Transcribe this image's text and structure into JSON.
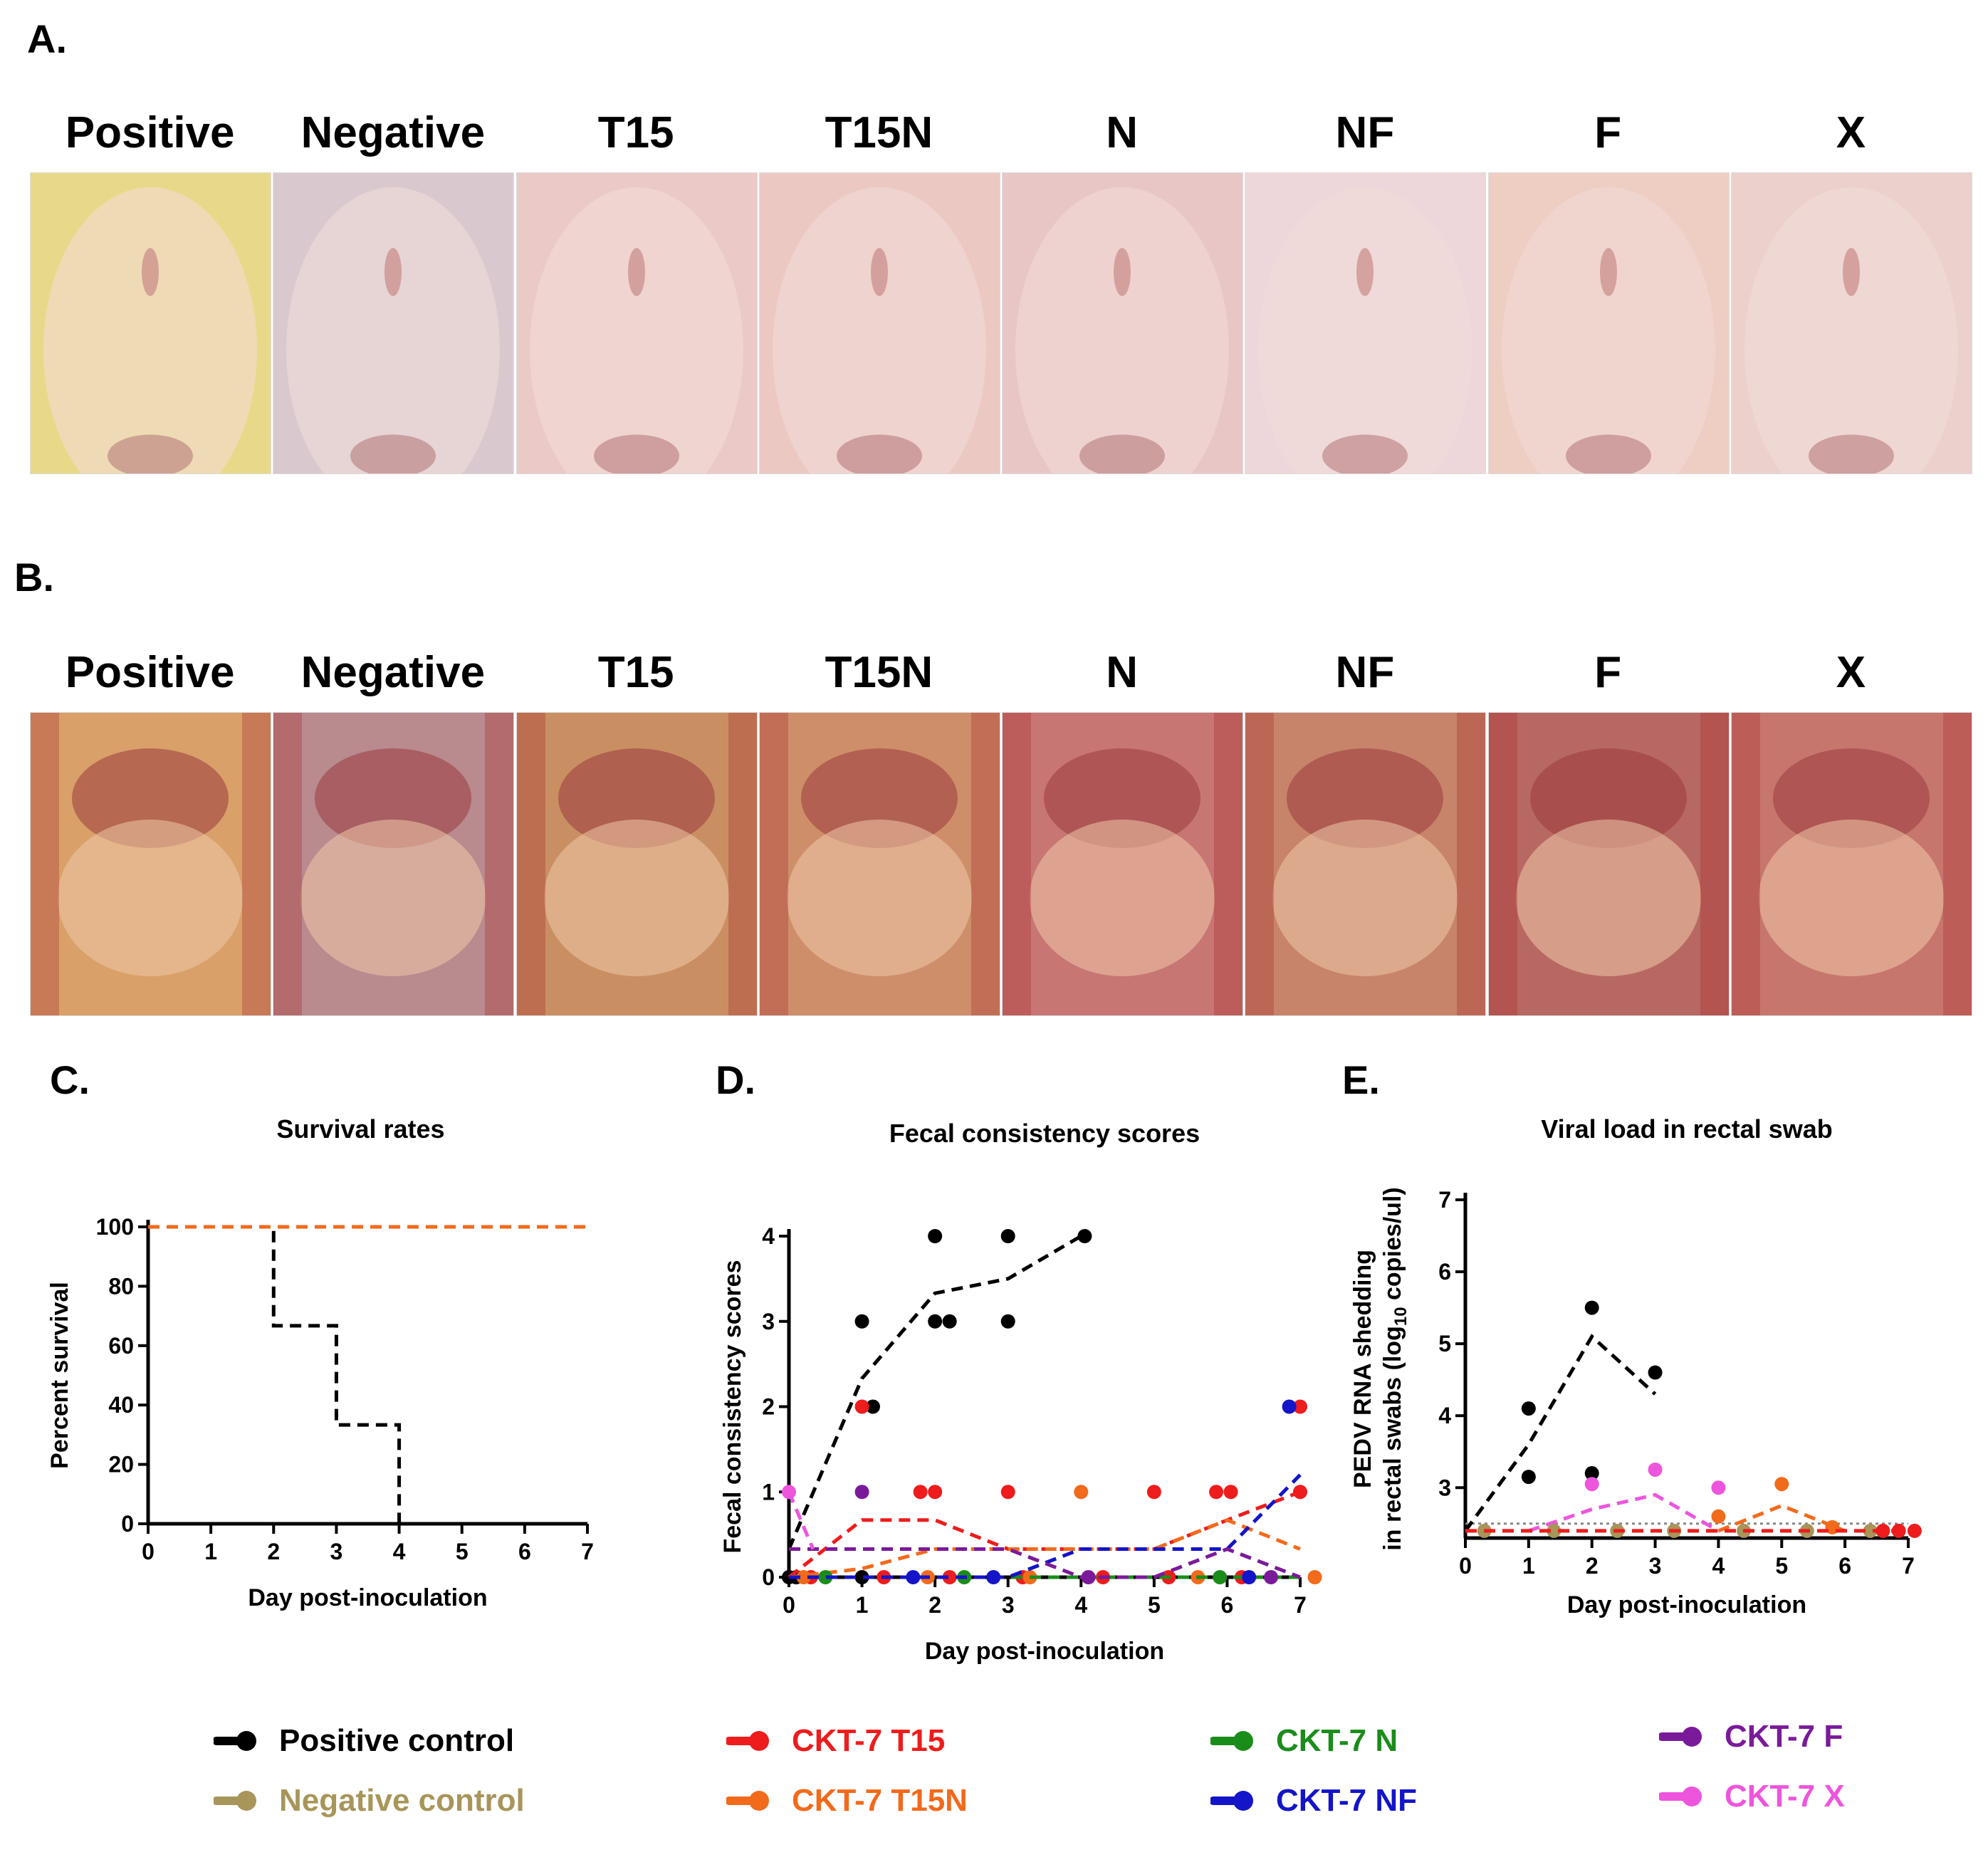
{
  "panels": {
    "a": "A.",
    "b": "B.",
    "c": "C.",
    "d": "D.",
    "e": "E."
  },
  "groups": [
    "Positive",
    "Negative",
    "T15",
    "T15N",
    "N",
    "NF",
    "F",
    "X"
  ],
  "legend": [
    {
      "label": "Positive control",
      "color": "#000000"
    },
    {
      "label": "Negative control",
      "color": "#a8955a"
    },
    {
      "label": "CKT-7 T15",
      "color": "#ee1c1c"
    },
    {
      "label": "CKT-7 T15N",
      "color": "#f26a1b"
    },
    {
      "label": "CKT-7 N",
      "color": "#1a8c1a"
    },
    {
      "label": "CKT-7 NF",
      "color": "#1414c8"
    },
    {
      "label": "CKT-7 F",
      "color": "#7a1a9a"
    },
    {
      "label": "CKT-7 X",
      "color": "#ee55dd"
    }
  ],
  "chart_data": [
    {
      "type": "line",
      "title": "Survival rates",
      "xlabel": "Day post-inoculation",
      "ylabel": "Percent survival",
      "xlim": [
        0,
        7
      ],
      "ylim": [
        0,
        100
      ],
      "xticks": [
        "0",
        "1",
        "2",
        "3",
        "4",
        "5",
        "6",
        "7"
      ],
      "yticks": [
        "0",
        "20",
        "40",
        "60",
        "80",
        "100"
      ],
      "step": true,
      "series": [
        {
          "name": "Positive control",
          "color": "#000000",
          "x": [
            0,
            2,
            2,
            3,
            3,
            4,
            4
          ],
          "y": [
            100,
            100,
            66.7,
            66.7,
            33.3,
            33.3,
            0
          ]
        },
        {
          "name": "Negative control",
          "color": "#a8955a",
          "x": [
            0,
            7
          ],
          "y": [
            100,
            100
          ]
        },
        {
          "name": "CKT-7 T15",
          "color": "#ee1c1c",
          "x": [
            0,
            7
          ],
          "y": [
            100,
            100
          ]
        },
        {
          "name": "CKT-7 T15N",
          "color": "#f26a1b",
          "x": [
            0,
            7
          ],
          "y": [
            100,
            100
          ]
        }
      ]
    },
    {
      "type": "scatter",
      "title": "Fecal consistency scores",
      "xlabel": "Day post-inoculation",
      "ylabel": "Fecal consistency scores",
      "xlim": [
        0,
        7
      ],
      "ylim": [
        0,
        4
      ],
      "xticks": [
        "0",
        "1",
        "2",
        "3",
        "4",
        "5",
        "6",
        "7"
      ],
      "yticks": [
        "0",
        "1",
        "2",
        "3",
        "4"
      ],
      "series": [
        {
          "name": "Positive control",
          "color": "#000000",
          "mean_x": [
            0,
            1,
            2,
            3,
            4
          ],
          "mean_y": [
            0.33,
            2.33,
            3.33,
            3.5,
            4
          ],
          "points": [
            [
              1,
              3
            ],
            [
              1.15,
              2
            ],
            [
              2,
              4
            ],
            [
              2,
              3
            ],
            [
              2.2,
              3
            ],
            [
              3,
              4
            ],
            [
              3,
              3
            ],
            [
              4.05,
              4
            ],
            [
              0,
              0
            ],
            [
              0.1,
              0
            ],
            [
              1,
              0
            ]
          ]
        },
        {
          "name": "CKT-7 T15",
          "color": "#ee1c1c",
          "mean_x": [
            0,
            1,
            2,
            3,
            4,
            5,
            6,
            7
          ],
          "mean_y": [
            0,
            0.67,
            0.67,
            0.33,
            0.33,
            0.33,
            0.67,
            1
          ],
          "points": [
            [
              1,
              2
            ],
            [
              1.8,
              1
            ],
            [
              2,
              1
            ],
            [
              3,
              1
            ],
            [
              5,
              1
            ],
            [
              5.85,
              1
            ],
            [
              6.05,
              1
            ],
            [
              7,
              2
            ],
            [
              7,
              1
            ],
            [
              0.3,
              0
            ],
            [
              1.3,
              0
            ],
            [
              2.2,
              0
            ],
            [
              3.2,
              0
            ],
            [
              4.3,
              0
            ],
            [
              5.2,
              0
            ],
            [
              6.2,
              0
            ]
          ]
        },
        {
          "name": "CKT-7 T15N",
          "color": "#f26a1b",
          "mean_x": [
            0,
            1,
            2,
            3,
            4,
            5,
            6,
            7
          ],
          "mean_y": [
            0,
            0.1,
            0.33,
            0.33,
            0.33,
            0.33,
            0.67,
            0.33
          ],
          "points": [
            [
              4,
              1
            ],
            [
              0.2,
              0
            ],
            [
              1.9,
              0
            ],
            [
              3.3,
              0
            ],
            [
              5.6,
              0
            ],
            [
              7.2,
              0
            ]
          ]
        },
        {
          "name": "CKT-7 N",
          "color": "#1a8c1a",
          "mean_x": [
            0,
            7
          ],
          "mean_y": [
            0,
            0
          ],
          "points": [
            [
              0.5,
              0
            ],
            [
              2.4,
              0
            ],
            [
              5.9,
              0
            ]
          ]
        },
        {
          "name": "CKT-7 NF",
          "color": "#1414c8",
          "mean_x": [
            0,
            3,
            4,
            5,
            6,
            7
          ],
          "mean_y": [
            0,
            0,
            0.33,
            0.33,
            0.33,
            1.2
          ],
          "points": [
            [
              6.85,
              2
            ],
            [
              1.7,
              0
            ],
            [
              2.8,
              0
            ],
            [
              6.3,
              0
            ]
          ]
        },
        {
          "name": "CKT-7 F",
          "color": "#7a1a9a",
          "mean_x": [
            0,
            1,
            2,
            3,
            4,
            5,
            6,
            7
          ],
          "mean_y": [
            0.33,
            0.33,
            0.33,
            0.33,
            0,
            0,
            0.33,
            0
          ],
          "points": [
            [
              1,
              1
            ],
            [
              4.1,
              0
            ],
            [
              6.6,
              0
            ]
          ]
        },
        {
          "name": "CKT-7 X",
          "color": "#ee55dd",
          "mean_x": [
            0,
            0.33
          ],
          "mean_y": [
            1,
            0.33
          ],
          "points": [
            [
              0,
              1
            ]
          ]
        }
      ]
    },
    {
      "type": "scatter",
      "title": "Viral load in rectal swab",
      "xlabel": "Day post-inoculation",
      "ylabel": "PEDV RNA shedding",
      "ylabel_line2_prefix": "in rectal swabs (log",
      "ylabel_sub": "10",
      "ylabel_line2_suffix": " copies/ul)",
      "xlim": [
        0,
        7
      ],
      "ylim": [
        2.3,
        7
      ],
      "detection_limit": 2.5,
      "xticks": [
        "0",
        "1",
        "2",
        "3",
        "4",
        "5",
        "6",
        "7"
      ],
      "yticks": [
        "3",
        "4",
        "5",
        "6",
        "7"
      ],
      "series": [
        {
          "name": "Positive control",
          "color": "#000000",
          "mean_x": [
            0,
            1,
            2,
            3
          ],
          "mean_y": [
            2.4,
            3.6,
            5.1,
            4.3
          ],
          "points": [
            [
              1,
              4.1
            ],
            [
              1,
              3.15
            ],
            [
              2,
              5.5
            ],
            [
              2,
              3.2
            ],
            [
              3,
              4.6
            ]
          ]
        },
        {
          "name": "CKT-7 X",
          "color": "#ee55dd",
          "mean_x": [
            1,
            2,
            3,
            4
          ],
          "mean_y": [
            2.4,
            2.7,
            2.9,
            2.4
          ],
          "points": [
            [
              2,
              3.05
            ],
            [
              3,
              3.25
            ],
            [
              4,
              3
            ]
          ]
        },
        {
          "name": "CKT-7 T15N",
          "color": "#f26a1b",
          "mean_x": [
            4,
            5,
            6
          ],
          "mean_y": [
            2.4,
            2.75,
            2.4
          ],
          "points": [
            [
              4,
              2.6
            ],
            [
              5,
              3.05
            ],
            [
              5.8,
              2.45
            ]
          ]
        },
        {
          "name": "Negative control",
          "color": "#a8955a",
          "mean_x": [
            0,
            7
          ],
          "mean_y": [
            2.4,
            2.4
          ],
          "points": [
            [
              0.3,
              2.4
            ],
            [
              1.4,
              2.4
            ],
            [
              2.4,
              2.4
            ],
            [
              3.3,
              2.4
            ],
            [
              4.4,
              2.4
            ],
            [
              5.4,
              2.4
            ],
            [
              6.4,
              2.4
            ]
          ]
        },
        {
          "name": "CKT-7 T15",
          "color": "#ee1c1c",
          "mean_x": [
            0,
            7
          ],
          "mean_y": [
            2.4,
            2.4
          ],
          "points": [
            [
              6.6,
              2.4
            ],
            [
              6.85,
              2.4
            ],
            [
              7.1,
              2.4
            ]
          ]
        }
      ]
    }
  ]
}
